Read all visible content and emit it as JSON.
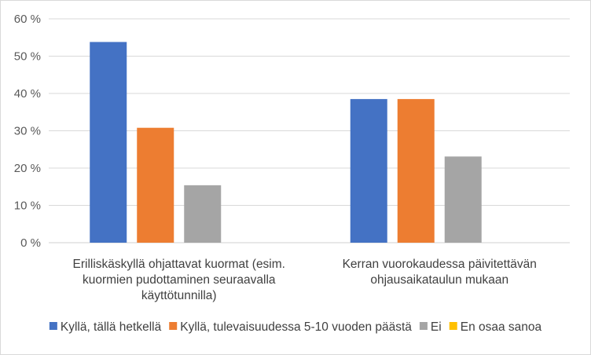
{
  "chart_data": {
    "type": "bar",
    "categories": [
      [
        "Erilliskäskyllä ohjattavat kuormat (esim.",
        "kuormien pudottaminen seuraavalla",
        "käyttötunnilla)"
      ],
      [
        "Kerran vuorokaudessa päivitettävän",
        "ohjausaikataulun mukaan"
      ]
    ],
    "series": [
      {
        "name": "Kyllä, tällä hetkellä",
        "color": "#4472C4",
        "values": [
          53.8,
          38.5
        ]
      },
      {
        "name": "Kyllä, tulevaisuudessa 5-10 vuoden päästä",
        "color": "#ED7D31",
        "values": [
          30.8,
          38.5
        ]
      },
      {
        "name": "Ei",
        "color": "#A5A5A5",
        "values": [
          15.4,
          23.1
        ]
      },
      {
        "name": "En osaa sanoa",
        "color": "#FFC000",
        "values": [
          0,
          0
        ]
      }
    ],
    "yticks": [
      "0 %",
      "10 %",
      "20 %",
      "30 %",
      "40 %",
      "50 %",
      "60 %"
    ],
    "ylim": [
      0,
      60
    ],
    "grid": true,
    "legend_position": "bottom",
    "title": "",
    "xlabel": "",
    "ylabel": ""
  }
}
